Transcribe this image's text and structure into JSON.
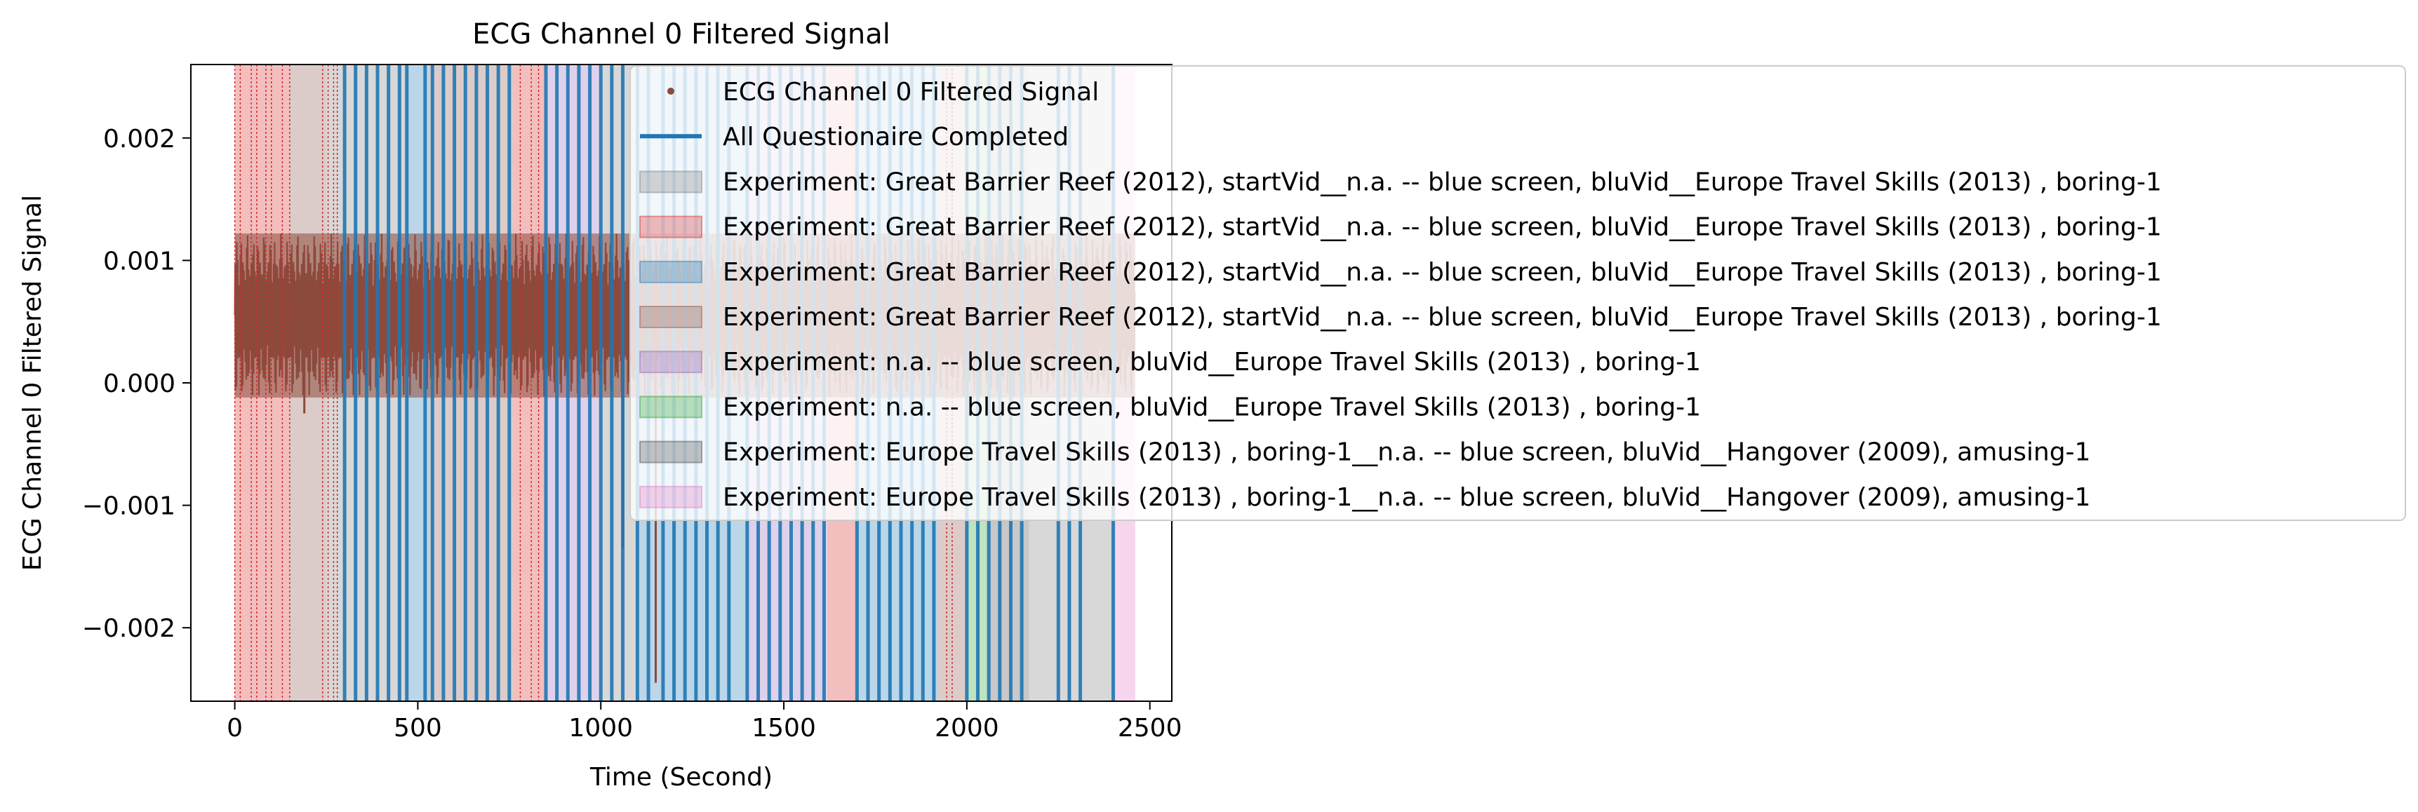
{
  "chart_data": {
    "type": "line",
    "title": "ECG Channel 0 Filtered Signal",
    "xlabel": "Time (Second)",
    "ylabel": "ECG Channel 0 Filtered Signal",
    "xlim": [
      -120,
      2560
    ],
    "ylim": [
      -0.0026,
      0.0026
    ],
    "xticks": [
      0,
      500,
      1000,
      1500,
      2000,
      2500
    ],
    "xtick_labels": [
      "0",
      "500",
      "1000",
      "1500",
      "2000",
      "2500"
    ],
    "yticks": [
      -0.002,
      -0.001,
      0.0,
      0.001,
      0.002
    ],
    "ytick_labels": [
      "−0.002",
      "−0.001",
      "0.000",
      "0.001",
      "0.002"
    ],
    "grid": false,
    "legend_position": "upper-right, extending outside the axes",
    "series": [
      {
        "name": "ECG Channel 0 Filtered Signal",
        "kind": "signal-points",
        "color": "#8c4a3c",
        "x_range": [
          0,
          2460
        ],
        "band": {
          "low": -0.00012,
          "high": 0.00122
        },
        "spikes": [
          {
            "x": 190,
            "y": -0.00025
          },
          {
            "x": 1060,
            "y": -0.00135
          },
          {
            "x": 1150,
            "y": -0.00245
          }
        ]
      },
      {
        "name": "All Questionaire Completed",
        "kind": "vertical-lines",
        "color": "#1f77b4",
        "x": [
          300,
          330,
          360,
          390,
          420,
          450,
          470,
          520,
          540,
          570,
          600,
          630,
          660,
          690,
          720,
          750,
          850,
          880,
          910,
          940,
          970,
          1000,
          1030,
          1060,
          1100,
          1130,
          1170,
          1200,
          1230,
          1260,
          1290,
          1320,
          1350,
          1400,
          1430,
          1460,
          1490,
          1520,
          1550,
          1580,
          1610,
          1700,
          1730,
          1760,
          1790,
          1820,
          1850,
          1880,
          1910,
          2000,
          2030,
          2060,
          2090,
          2120,
          2150,
          2250,
          2280,
          2310,
          2400
        ]
      }
    ],
    "spans": [
      {
        "name": "Experiment: Great Barrier Reef (2012), startVid__n.a. -- blue screen, bluVid__Europe Travel Skills (2013) , boring-1",
        "color": "#7f7f7f",
        "ranges": [
          [
            250,
            470
          ],
          [
            1000,
            1100
          ],
          [
            2170,
            2400
          ]
        ]
      },
      {
        "name": "Experiment: Great Barrier Reef (2012), startVid__n.a. -- blue screen, bluVid__Europe Travel Skills (2013) , boring-1",
        "color": "#d62728",
        "ranges": [
          [
            0,
            150
          ],
          [
            760,
            850
          ],
          [
            1620,
            1700
          ]
        ]
      },
      {
        "name": "Experiment: Great Barrier Reef (2012), startVid__n.a. -- blue screen, bluVid__Europe Travel Skills (2013) , boring-1",
        "color": "#1f77b4",
        "ranges": [
          [
            470,
            530
          ],
          [
            1100,
            1400
          ],
          [
            1700,
            1920
          ]
        ]
      },
      {
        "name": "Experiment: Great Barrier Reef (2012), startVid__n.a. -- blue screen, bluVid__Europe Travel Skills (2013) , boring-1",
        "color": "#8c564b",
        "ranges": [
          [
            150,
            250
          ],
          [
            530,
            760
          ],
          [
            1920,
            2000
          ]
        ]
      },
      {
        "name": "Experiment: n.a. -- blue screen, bluVid__Europe Travel Skills (2013) , boring-1",
        "color": "#9467bd",
        "ranges": [
          [
            850,
            1000
          ],
          [
            1400,
            1620
          ]
        ]
      },
      {
        "name": "Experiment: n.a. -- blue screen, bluVid__Europe Travel Skills (2013) , boring-1",
        "color": "#2ca02c",
        "ranges": [
          [
            2000,
            2060
          ]
        ]
      },
      {
        "name": "Experiment: Europe Travel Skills (2013) , boring-1__n.a. -- blue screen, bluVid__Hangover (2009), amusing-1",
        "color": "#4a4a4a",
        "ranges": [
          [
            2060,
            2170
          ]
        ]
      },
      {
        "name": "Experiment: Europe Travel Skills (2013) , boring-1__n.a. -- blue screen, bluVid__Hangover (2009), amusing-1",
        "color": "#e377c2",
        "ranges": [
          [
            2400,
            2460
          ]
        ]
      }
    ],
    "event_markers": {
      "color": "#d62728",
      "style": "dotted",
      "x": [
        0,
        15,
        45,
        60,
        85,
        100,
        130,
        150,
        240,
        255,
        270,
        280,
        780,
        810,
        830,
        1945,
        1960
      ]
    }
  }
}
